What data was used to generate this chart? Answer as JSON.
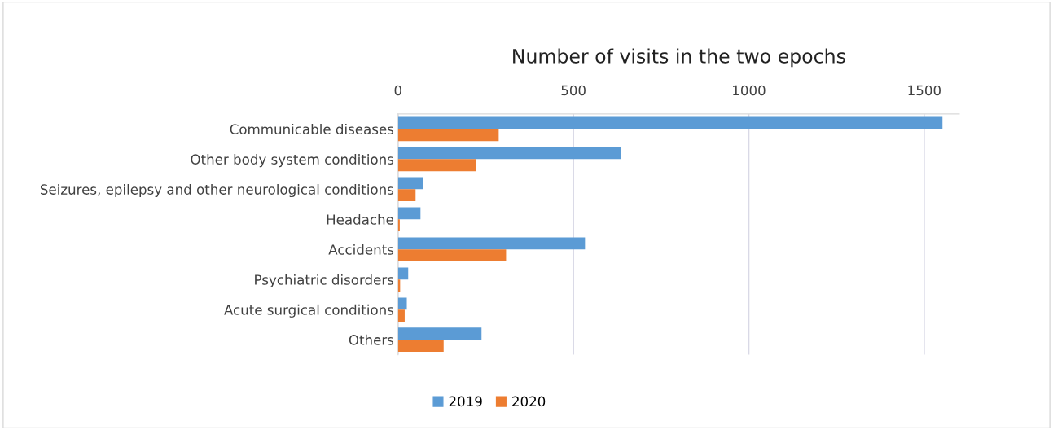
{
  "chart_data": {
    "type": "bar",
    "orientation": "horizontal",
    "title": "Number of visits in the two epochs",
    "categories": [
      "Communicable diseases",
      "Other body system conditions",
      "Seizures, epilepsy and other neurological conditions",
      "Headache",
      "Accidents",
      "Psychiatric disorders",
      "Acute surgical conditions",
      "Others"
    ],
    "series": [
      {
        "name": "2019",
        "color": "#5b9bd5",
        "values": [
          1552,
          636,
          72,
          64,
          533,
          29,
          25,
          238
        ]
      },
      {
        "name": "2020",
        "color": "#ed7d31",
        "values": [
          287,
          223,
          50,
          5,
          308,
          6,
          19,
          130
        ]
      }
    ],
    "xlim": [
      0,
      1600
    ],
    "xticks": [
      0,
      500,
      1000,
      1500
    ],
    "grid": "x",
    "legend": "bottom"
  }
}
